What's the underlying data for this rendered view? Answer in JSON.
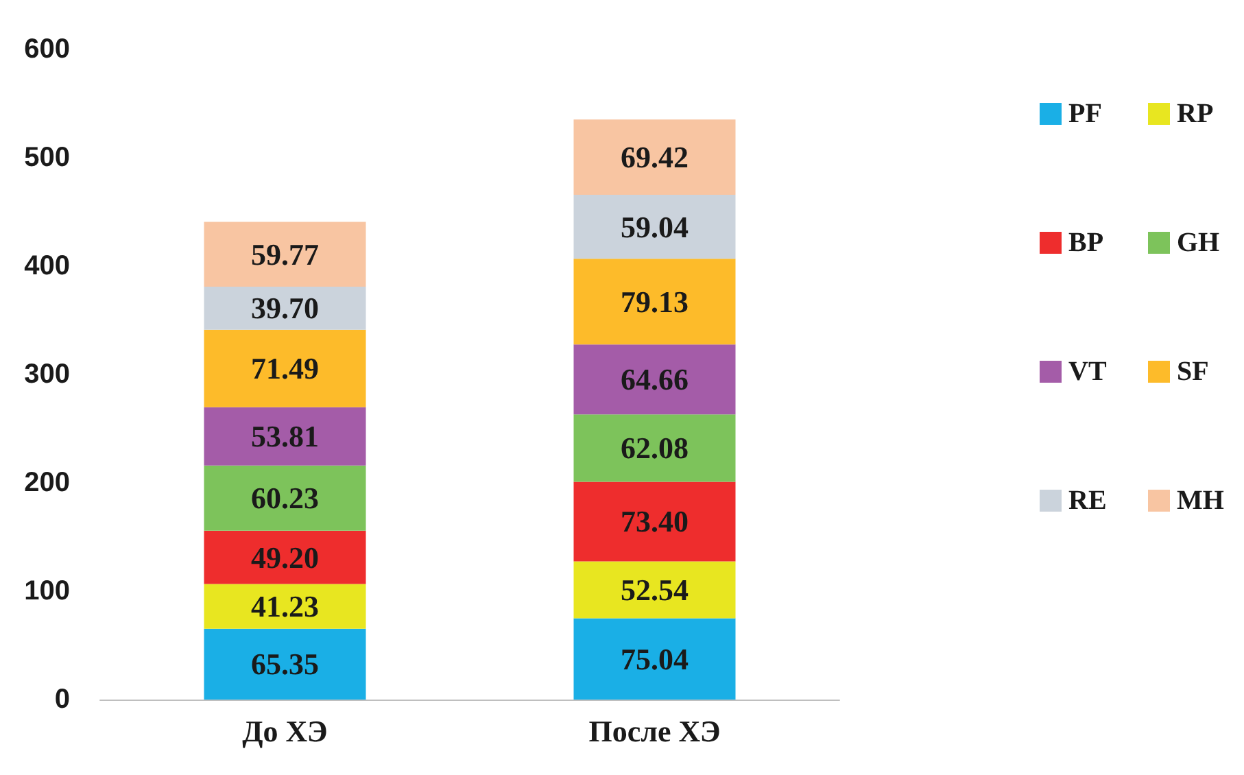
{
  "chart_data": {
    "type": "bar",
    "stacked": true,
    "categories": [
      "До ХЭ",
      "После ХЭ"
    ],
    "ylim": [
      0,
      600
    ],
    "yticks": [
      0,
      100,
      200,
      300,
      400,
      500,
      600
    ],
    "grid": false,
    "legend": "right",
    "series": [
      {
        "name": "PF",
        "color": "#1aafe6",
        "values": [
          65.35,
          75.04
        ],
        "value_labels": [
          "65.35",
          "75.04"
        ]
      },
      {
        "name": "RP",
        "color": "#e8e620",
        "values": [
          41.23,
          52.54
        ],
        "value_labels": [
          "41.23",
          "52.54"
        ]
      },
      {
        "name": "BP",
        "color": "#ee2d2d",
        "values": [
          49.2,
          73.4
        ],
        "value_labels": [
          "49.20",
          "73.40"
        ]
      },
      {
        "name": "GH",
        "color": "#7dc35b",
        "values": [
          60.23,
          62.08
        ],
        "value_labels": [
          "60.23",
          "62.08"
        ]
      },
      {
        "name": "VT",
        "color": "#a45ca8",
        "values": [
          53.81,
          64.66
        ],
        "value_labels": [
          "53.81",
          "64.66"
        ]
      },
      {
        "name": "SF",
        "color": "#fdbb2a",
        "values": [
          71.49,
          79.13
        ],
        "value_labels": [
          "71.49",
          "79.13"
        ]
      },
      {
        "name": "RE",
        "color": "#cbd3dc",
        "values": [
          39.7,
          59.04
        ],
        "value_labels": [
          "39.70",
          "59.04"
        ]
      },
      {
        "name": "MH",
        "color": "#f8c5a2",
        "values": [
          59.77,
          69.42
        ],
        "value_labels": [
          "59.77",
          "69.42"
        ]
      }
    ]
  }
}
